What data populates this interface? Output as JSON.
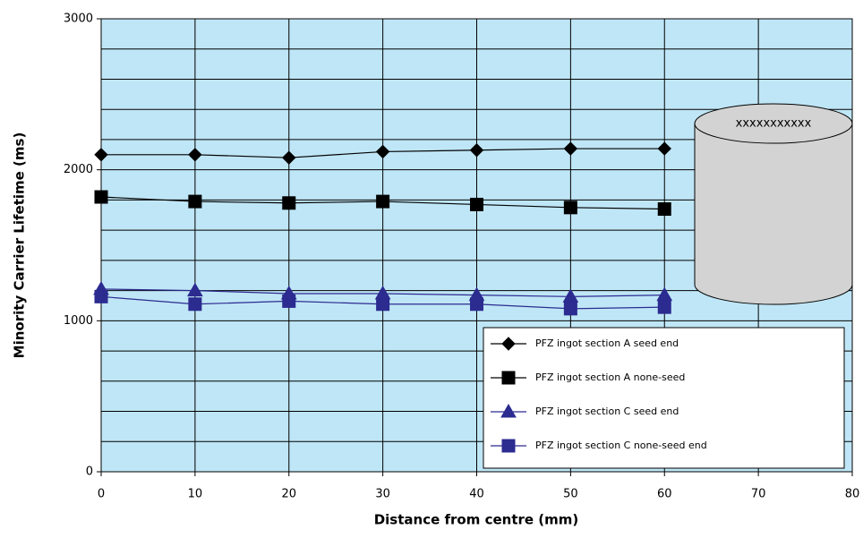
{
  "chart_data": {
    "type": "line",
    "x_label": "Distance from centre (mm)",
    "y_label": "Minority Carrier Lifetime (ms)",
    "x": [
      0,
      10,
      20,
      30,
      40,
      50,
      60
    ],
    "xlim": [
      0,
      80
    ],
    "xticks": [
      0,
      10,
      20,
      30,
      40,
      50,
      60,
      70,
      80
    ],
    "ylim": [
      0,
      3000
    ],
    "yticks": [
      0,
      1000,
      2000,
      3000
    ],
    "yminor_ticks": [
      200,
      400,
      600,
      800,
      1200,
      1400,
      1600,
      1800,
      2200,
      2400,
      2600,
      2800
    ],
    "grid": true,
    "background": "#bfe6f6",
    "legend_position": "lower right",
    "annotation": "xxxxxxxxxxx",
    "series": [
      {
        "name": "PFZ ingot section A seed end",
        "color": "#000000",
        "marker": "diamond",
        "values": [
          2100,
          2100,
          2080,
          2120,
          2130,
          2140,
          2140
        ]
      },
      {
        "name": "PFZ ingot section A none-seed",
        "color": "#000000",
        "marker": "square",
        "values": [
          1820,
          1790,
          1780,
          1790,
          1770,
          1750,
          1740
        ]
      },
      {
        "name": "PFZ ingot section C seed end",
        "color": "#2b2b90",
        "marker": "triangle",
        "values": [
          1210,
          1200,
          1180,
          1180,
          1170,
          1160,
          1170
        ]
      },
      {
        "name": "PFZ ingot section C none-seed end",
        "color": "#2b2b90",
        "marker": "square",
        "values": [
          1160,
          1110,
          1130,
          1110,
          1110,
          1080,
          1090
        ]
      }
    ]
  }
}
